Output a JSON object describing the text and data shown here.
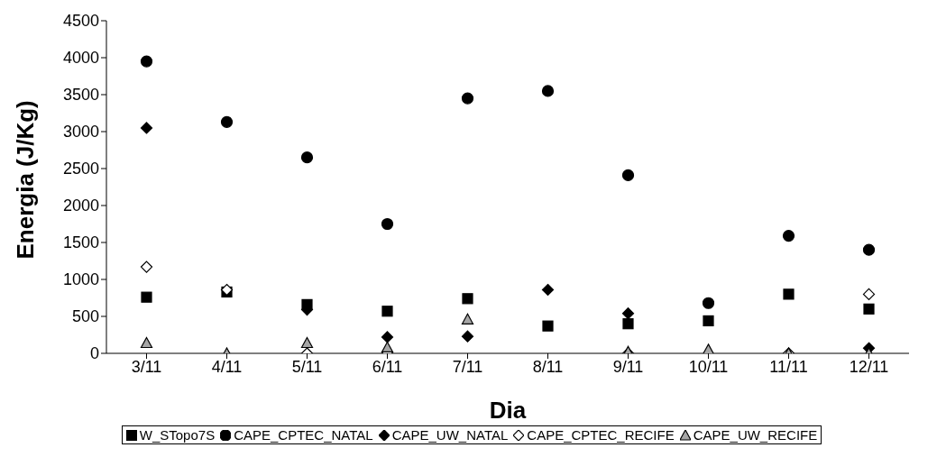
{
  "chart_data": {
    "type": "scatter",
    "xlabel": "Dia",
    "ylabel": "Energia (J/Kg)",
    "categories": [
      "3/11",
      "4/11",
      "5/11",
      "6/11",
      "7/11",
      "8/11",
      "9/11",
      "10/11",
      "11/11",
      "12/11"
    ],
    "ylim": [
      0,
      4500
    ],
    "yticks": [
      0,
      500,
      1000,
      1500,
      2000,
      2500,
      3000,
      3500,
      4000,
      4500
    ],
    "grid": false,
    "legend": "bottom",
    "series": [
      {
        "name": "W_STopo7S",
        "color": "#000000",
        "marker": "square",
        "values": [
          760,
          830,
          660,
          570,
          740,
          370,
          400,
          440,
          800,
          600
        ]
      },
      {
        "name": "CAPE_CPTEC_NATAL",
        "color": "#000000",
        "marker": "circle",
        "values": [
          3950,
          3130,
          2650,
          1750,
          3450,
          3550,
          2410,
          680,
          1590,
          1400
        ]
      },
      {
        "name": "CAPE_UW_NATAL",
        "color": "#000000",
        "marker": "diamond",
        "values": [
          3050,
          null,
          590,
          220,
          230,
          860,
          540,
          null,
          null,
          70
        ]
      },
      {
        "name": "CAPE_CPTEC_RECIFE",
        "color": "#ffffff",
        "marker": "diamond",
        "values": [
          1170,
          860,
          0,
          0,
          null,
          null,
          0,
          null,
          0,
          800
        ]
      },
      {
        "name": "CAPE_UW_RECIFE",
        "color": "#a6a6a6",
        "marker": "triangle",
        "values": [
          140,
          0,
          140,
          80,
          460,
          null,
          20,
          50,
          0,
          0
        ]
      }
    ]
  }
}
